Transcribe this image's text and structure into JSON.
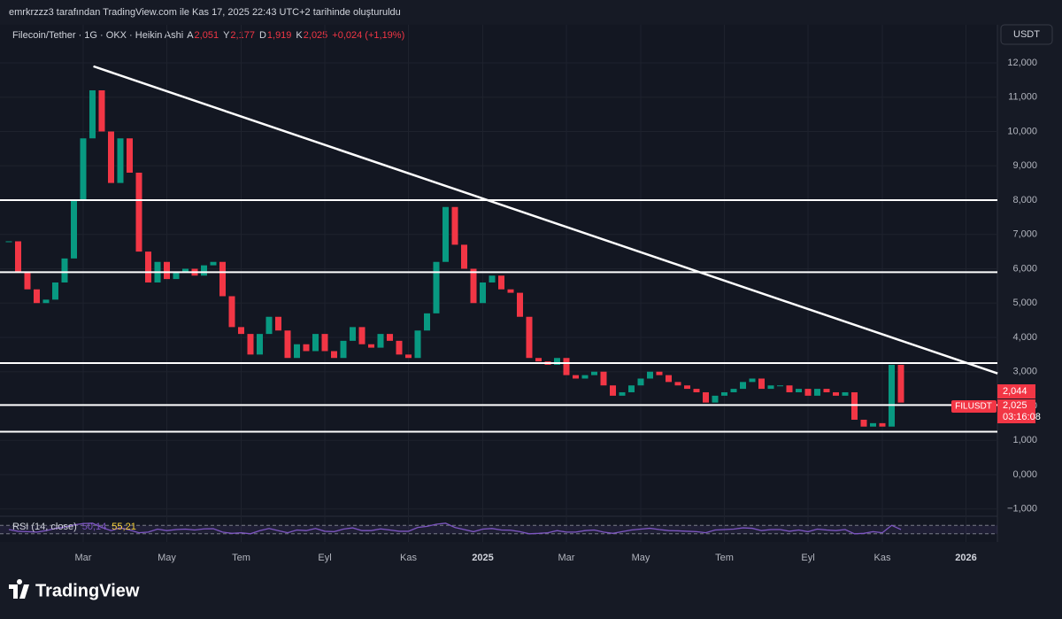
{
  "header": "emrkrzzz3 tarafından TradingView.com ile Kas 17, 2025 22:43 UTC+2 tarihinde oluşturuldu",
  "legend": {
    "symbol": "Filecoin/Tether · 1G · OKX · Heikin Ashi",
    "ohlc": [
      {
        "key": "A",
        "value": "2,051"
      },
      {
        "key": "Y",
        "value": "2,177"
      },
      {
        "key": "D",
        "value": "1,919"
      },
      {
        "key": "K",
        "value": "2,025"
      }
    ],
    "change": "+0,024 (+1,19%)"
  },
  "currency_button": "USDT",
  "price_tags": {
    "high": "2,044",
    "last": "2,025",
    "countdown": "03:16:08",
    "symbol": "FILUSDT"
  },
  "brand": "TradingView",
  "chart_data": {
    "type": "candlestick",
    "categories": [
      null,
      null,
      null,
      null,
      null,
      null,
      null,
      null,
      "Mar",
      null,
      null,
      null,
      null,
      null,
      null,
      null,
      null,
      "May",
      null,
      null,
      null,
      null,
      null,
      null,
      null,
      "Tem",
      null,
      null,
      null,
      null,
      null,
      null,
      null,
      null,
      "Eyl",
      null,
      null,
      null,
      null,
      null,
      null,
      null,
      null,
      "Kas",
      null,
      null,
      null,
      null,
      null,
      null,
      null,
      "2025",
      null,
      null,
      null,
      null,
      null,
      null,
      null,
      null,
      "Mar",
      null,
      null,
      null,
      null,
      null,
      null,
      null,
      "May",
      null,
      null,
      null,
      null,
      null,
      null,
      null,
      null,
      "Tem",
      null,
      null,
      null,
      null,
      null,
      null,
      null,
      null,
      "Eyl",
      null,
      null,
      null,
      null,
      null,
      null,
      null,
      "Kas",
      null,
      null,
      null,
      null,
      null,
      null,
      null,
      null,
      "2026"
    ],
    "series": [
      {
        "name": "FILUSDT",
        "up_color": "#089981",
        "down_color": "#f23645",
        "values": [
          6.8,
          5.9,
          5.4,
          5.0,
          5.1,
          5.6,
          6.3,
          8.0,
          9.8,
          11.2,
          10.0,
          8.5,
          9.8,
          8.8,
          6.5,
          5.6,
          6.2,
          5.7,
          5.9,
          6.0,
          5.8,
          6.1,
          6.2,
          5.2,
          4.3,
          4.1,
          3.5,
          4.1,
          4.6,
          4.2,
          3.4,
          3.8,
          3.6,
          4.1,
          3.6,
          3.4,
          3.9,
          4.3,
          3.8,
          3.7,
          4.1,
          3.9,
          3.5,
          3.4,
          4.2,
          4.7,
          6.2,
          7.8,
          6.7,
          6.0,
          5.0,
          5.6,
          5.8,
          5.4,
          5.3,
          4.6,
          3.4,
          3.3,
          3.2,
          3.4,
          2.9,
          2.8,
          2.9,
          3.0,
          2.6,
          2.3,
          2.4,
          2.6,
          2.8,
          3.0,
          2.9,
          2.7,
          2.6,
          2.5,
          2.4,
          2.1,
          2.3,
          2.4,
          2.5,
          2.7,
          2.8,
          2.5,
          2.6,
          2.6,
          2.4,
          2.5,
          2.3,
          2.5,
          2.4,
          2.3,
          2.4,
          1.6,
          1.4,
          1.5,
          1.4,
          3.2,
          2.1,
          null,
          null,
          null,
          null,
          null,
          null,
          null
        ]
      }
    ],
    "ylim": [
      -1.1,
      13.2
    ],
    "yticks": [
      {
        "value": 12,
        "label": "12,000"
      },
      {
        "value": 11,
        "label": "11,000"
      },
      {
        "value": 10,
        "label": "10,000"
      },
      {
        "value": 9,
        "label": "9,000"
      },
      {
        "value": 8,
        "label": "8,000"
      },
      {
        "value": 7,
        "label": "7,000"
      },
      {
        "value": 6,
        "label": "6,000"
      },
      {
        "value": 5,
        "label": "5,000"
      },
      {
        "value": 4,
        "label": "4,000"
      },
      {
        "value": 3,
        "label": "3,000"
      },
      {
        "value": 2,
        "label": "2,000"
      },
      {
        "value": 1,
        "label": "1,000"
      },
      {
        "value": 0,
        "label": "0,000"
      },
      {
        "value": -1,
        "label": "−1,000"
      }
    ],
    "grid": true,
    "hlines": [
      8.0,
      5.9,
      3.25,
      2.03,
      1.25
    ],
    "trendline": {
      "x": [
        9.1,
        106.4
      ],
      "y": [
        11.9,
        2.95
      ]
    },
    "rsi": {
      "name": "RSI (14, close)",
      "value_label": "50,14",
      "ma_label": "55,21",
      "color": "#7e57c2",
      "ylim": [
        0,
        100
      ],
      "bands": [
        70,
        30
      ],
      "values": [
        50,
        42,
        40,
        38,
        45,
        55,
        62,
        72,
        78,
        80,
        60,
        45,
        58,
        48,
        35,
        38,
        52,
        45,
        50,
        52,
        48,
        53,
        54,
        38,
        32,
        35,
        30,
        45,
        55,
        45,
        35,
        48,
        45,
        55,
        42,
        40,
        52,
        58,
        45,
        45,
        53,
        48,
        42,
        42,
        60,
        65,
        75,
        80,
        60,
        50,
        40,
        52,
        55,
        48,
        47,
        40,
        30,
        32,
        35,
        45,
        38,
        38,
        45,
        48,
        38,
        32,
        40,
        48,
        52,
        56,
        50,
        45,
        44,
        42,
        40,
        35,
        48,
        50,
        52,
        58,
        56,
        45,
        50,
        50,
        42,
        48,
        40,
        52,
        48,
        45,
        50,
        30,
        32,
        40,
        35,
        70,
        50,
        null,
        null,
        null,
        null,
        null,
        null,
        null
      ]
    }
  }
}
